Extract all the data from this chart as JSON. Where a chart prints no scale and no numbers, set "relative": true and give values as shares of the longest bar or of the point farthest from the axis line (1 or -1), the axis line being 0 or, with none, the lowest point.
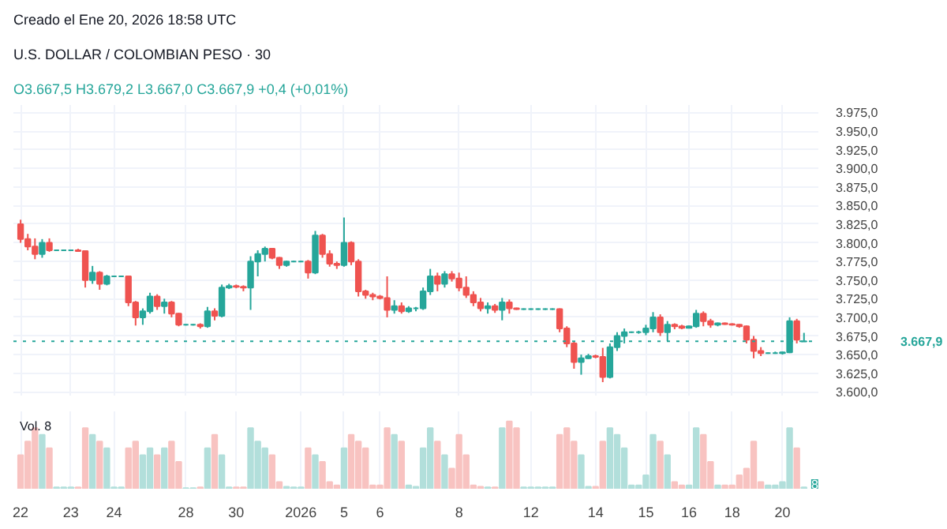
{
  "chart_data": [
    {
      "type": "candlestick",
      "title": "U.S. DOLLAR / COLOMBIAN PESO · 30",
      "subtitle": "O3.667,5 H3.679,2 L3.667,0 C3.667,9 +0,4 (+0,01%)",
      "annotations": [
        "Creado el Ene 20, 2026 18:58 UTC"
      ],
      "categories": [
        "22",
        null,
        null,
        null,
        null,
        null,
        null,
        "23",
        null,
        null,
        null,
        null,
        null,
        "24",
        null,
        null,
        null,
        null,
        null,
        null,
        null,
        null,
        null,
        "28",
        null,
        null,
        null,
        null,
        null,
        null,
        "30",
        null,
        null,
        null,
        null,
        null,
        null,
        null,
        null,
        "2026",
        null,
        null,
        null,
        null,
        null,
        "5",
        null,
        null,
        null,
        null,
        "6",
        null,
        null,
        null,
        null,
        null,
        null,
        null,
        null,
        null,
        null,
        "8",
        null,
        null,
        null,
        null,
        null,
        null,
        null,
        null,
        null,
        "12",
        null,
        null,
        null,
        null,
        null,
        null,
        null,
        null,
        "14",
        null,
        null,
        null,
        null,
        null,
        null,
        "15",
        null,
        null,
        null,
        null,
        null,
        "16",
        null,
        null,
        null,
        null,
        null,
        "18",
        null,
        null,
        null,
        null,
        null,
        null,
        "20",
        null,
        null,
        null
      ],
      "ohlc": [
        [
          3825,
          3831,
          3800,
          3805
        ],
        [
          3805,
          3812,
          3790,
          3795
        ],
        [
          3795,
          3806,
          3778,
          3785
        ],
        [
          3785,
          3805,
          3780,
          3800
        ],
        [
          3800,
          3806,
          3788,
          3790
        ],
        [
          3790,
          3791,
          3789,
          3790
        ],
        [
          3790,
          3791,
          3789,
          3790
        ],
        [
          3790,
          3791,
          3789,
          3790
        ],
        [
          3790,
          3792,
          3788,
          3789
        ],
        [
          3789,
          3790,
          3740,
          3750
        ],
        [
          3750,
          3769,
          3745,
          3760
        ],
        [
          3760,
          3762,
          3737,
          3745
        ],
        [
          3745,
          3757,
          3743,
          3755
        ],
        [
          3755,
          3756,
          3754,
          3755
        ],
        [
          3755,
          3756,
          3754,
          3755
        ],
        [
          3755,
          3756,
          3715,
          3720
        ],
        [
          3720,
          3722,
          3689,
          3700
        ],
        [
          3700,
          3712,
          3690,
          3708
        ],
        [
          3708,
          3733,
          3705,
          3728
        ],
        [
          3728,
          3731,
          3710,
          3715
        ],
        [
          3715,
          3725,
          3705,
          3720
        ],
        [
          3720,
          3722,
          3700,
          3705
        ],
        [
          3705,
          3706,
          3688,
          3690
        ],
        [
          3690,
          3691,
          3689,
          3690
        ],
        [
          3690,
          3691,
          3689,
          3690
        ],
        [
          3690,
          3692,
          3685,
          3688
        ],
        [
          3688,
          3714,
          3686,
          3708
        ],
        [
          3708,
          3712,
          3696,
          3702
        ],
        [
          3702,
          3744,
          3700,
          3740
        ],
        [
          3740,
          3745,
          3738,
          3742
        ],
        [
          3742,
          3744,
          3739,
          3741
        ],
        [
          3741,
          3743,
          3735,
          3740
        ],
        [
          3740,
          3782,
          3710,
          3775
        ],
        [
          3775,
          3790,
          3755,
          3785
        ],
        [
          3785,
          3795,
          3775,
          3792
        ],
        [
          3792,
          3793,
          3778,
          3780
        ],
        [
          3780,
          3781,
          3765,
          3770
        ],
        [
          3770,
          3776,
          3768,
          3775
        ],
        [
          3775,
          3776,
          3774,
          3775
        ],
        [
          3775,
          3776,
          3774,
          3775
        ],
        [
          3775,
          3777,
          3752,
          3760
        ],
        [
          3760,
          3816,
          3758,
          3810
        ],
        [
          3810,
          3812,
          3780,
          3785
        ],
        [
          3785,
          3790,
          3768,
          3772
        ],
        [
          3772,
          3775,
          3765,
          3770
        ],
        [
          3770,
          3834,
          3768,
          3800
        ],
        [
          3800,
          3802,
          3770,
          3775
        ],
        [
          3775,
          3778,
          3728,
          3735
        ],
        [
          3735,
          3737,
          3725,
          3730
        ],
        [
          3730,
          3733,
          3723,
          3728
        ],
        [
          3728,
          3730,
          3724,
          3726
        ],
        [
          3726,
          3755,
          3700,
          3710
        ],
        [
          3710,
          3723,
          3705,
          3715
        ],
        [
          3715,
          3720,
          3705,
          3708
        ],
        [
          3708,
          3715,
          3706,
          3712
        ],
        [
          3712,
          3714,
          3708,
          3712
        ],
        [
          3712,
          3740,
          3710,
          3735
        ],
        [
          3735,
          3765,
          3730,
          3755
        ],
        [
          3755,
          3760,
          3735,
          3745
        ],
        [
          3745,
          3762,
          3740,
          3758
        ],
        [
          3758,
          3762,
          3748,
          3752
        ],
        [
          3752,
          3760,
          3735,
          3740
        ],
        [
          3740,
          3755,
          3726,
          3730
        ],
        [
          3730,
          3735,
          3715,
          3720
        ],
        [
          3720,
          3726,
          3708,
          3712
        ],
        [
          3712,
          3720,
          3705,
          3715
        ],
        [
          3715,
          3718,
          3706,
          3710
        ],
        [
          3710,
          3726,
          3696,
          3720
        ],
        [
          3720,
          3724,
          3705,
          3712
        ],
        [
          3712,
          3713,
          3710,
          3711
        ],
        [
          3711,
          3712,
          3710,
          3711
        ],
        [
          3711,
          3712,
          3710,
          3711
        ],
        [
          3711,
          3712,
          3710,
          3711
        ],
        [
          3711,
          3712,
          3710,
          3711
        ],
        [
          3711,
          3712,
          3710,
          3711
        ],
        [
          3711,
          3712,
          3680,
          3685
        ],
        [
          3685,
          3688,
          3660,
          3665
        ],
        [
          3665,
          3668,
          3631,
          3640
        ],
        [
          3640,
          3650,
          3623,
          3645
        ],
        [
          3645,
          3651,
          3644,
          3648
        ],
        [
          3648,
          3650,
          3645,
          3647
        ],
        [
          3647,
          3659,
          3613,
          3620
        ],
        [
          3620,
          3665,
          3618,
          3660
        ],
        [
          3660,
          3680,
          3655,
          3675
        ],
        [
          3675,
          3685,
          3665,
          3680
        ],
        [
          3680,
          3681,
          3679,
          3680
        ],
        [
          3680,
          3682,
          3678,
          3680
        ],
        [
          3680,
          3690,
          3676,
          3685
        ],
        [
          3685,
          3707,
          3680,
          3700
        ],
        [
          3700,
          3704,
          3675,
          3680
        ],
        [
          3680,
          3695,
          3668,
          3690
        ],
        [
          3690,
          3692,
          3684,
          3688
        ],
        [
          3688,
          3690,
          3684,
          3686
        ],
        [
          3686,
          3689,
          3685,
          3688
        ],
        [
          3688,
          3710,
          3686,
          3705
        ],
        [
          3705,
          3708,
          3688,
          3695
        ],
        [
          3695,
          3698,
          3686,
          3690
        ],
        [
          3690,
          3693,
          3688,
          3692
        ],
        [
          3692,
          3693,
          3690,
          3691
        ],
        [
          3691,
          3692,
          3689,
          3690
        ],
        [
          3690,
          3691,
          3686,
          3688
        ],
        [
          3688,
          3689,
          3665,
          3670
        ],
        [
          3670,
          3675,
          3645,
          3655
        ],
        [
          3655,
          3660,
          3648,
          3652
        ],
        [
          3652,
          3653,
          3651,
          3652
        ],
        [
          3652,
          3654,
          3651,
          3652
        ],
        [
          3652,
          3654,
          3650,
          3653
        ],
        [
          3653,
          3700,
          3652,
          3695
        ],
        [
          3695,
          3698,
          3665,
          3670
        ],
        [
          3667.5,
          3679.2,
          3667.0,
          3667.9
        ]
      ],
      "colors": [
        "#ef5350",
        "#ef5350",
        "#ef5350",
        "#26a69a",
        "#ef5350",
        "#26a69a",
        "#26a69a",
        "#26a69a",
        "#ef5350",
        "#ef5350",
        "#26a69a",
        "#ef5350",
        "#26a69a",
        "#26a69a",
        "#26a69a",
        "#ef5350",
        "#ef5350",
        "#26a69a",
        "#26a69a",
        "#ef5350",
        "#26a69a",
        "#ef5350",
        "#ef5350",
        "#26a69a",
        "#26a69a",
        "#ef5350",
        "#26a69a",
        "#ef5350",
        "#26a69a",
        "#26a69a",
        "#ef5350",
        "#ef5350",
        "#26a69a",
        "#26a69a",
        "#26a69a",
        "#ef5350",
        "#ef5350",
        "#26a69a",
        "#26a69a",
        "#26a69a",
        "#ef5350",
        "#26a69a",
        "#ef5350",
        "#ef5350",
        "#ef5350",
        "#26a69a",
        "#ef5350",
        "#ef5350",
        "#ef5350",
        "#ef5350",
        "#ef5350",
        "#ef5350",
        "#26a69a",
        "#ef5350",
        "#26a69a",
        "#26a69a",
        "#26a69a",
        "#26a69a",
        "#ef5350",
        "#26a69a",
        "#ef5350",
        "#ef5350",
        "#ef5350",
        "#ef5350",
        "#ef5350",
        "#26a69a",
        "#ef5350",
        "#26a69a",
        "#ef5350",
        "#ef5350",
        "#26a69a",
        "#26a69a",
        "#26a69a",
        "#26a69a",
        "#26a69a",
        "#ef5350",
        "#ef5350",
        "#ef5350",
        "#26a69a",
        "#26a69a",
        "#ef5350",
        "#ef5350",
        "#26a69a",
        "#26a69a",
        "#26a69a",
        "#26a69a",
        "#26a69a",
        "#26a69a",
        "#26a69a",
        "#ef5350",
        "#26a69a",
        "#ef5350",
        "#ef5350",
        "#26a69a",
        "#26a69a",
        "#ef5350",
        "#ef5350",
        "#26a69a",
        "#ef5350",
        "#ef5350",
        "#ef5350",
        "#ef5350",
        "#ef5350",
        "#ef5350",
        "#26a69a",
        "#26a69a",
        "#26a69a",
        "#26a69a",
        "#ef5350",
        "#26a69a"
      ],
      "ylim": [
        3595,
        3985
      ],
      "yticks": [
        {
          "value": 3600,
          "label": "3.600,0"
        },
        {
          "value": 3625,
          "label": "3.625,0"
        },
        {
          "value": 3650,
          "label": "3.650,0"
        },
        {
          "value": 3675,
          "label": "3.675,0"
        },
        {
          "value": 3700,
          "label": "3.700,0"
        },
        {
          "value": 3725,
          "label": "3.725,0"
        },
        {
          "value": 3750,
          "label": "3.750,0"
        },
        {
          "value": 3775,
          "label": "3.775,0"
        },
        {
          "value": 3800,
          "label": "3.800,0"
        },
        {
          "value": 3825,
          "label": "3.825,0"
        },
        {
          "value": 3850,
          "label": "3.850,0"
        },
        {
          "value": 3875,
          "label": "3.875,0"
        },
        {
          "value": 3900,
          "label": "3.900,0"
        },
        {
          "value": 3925,
          "label": "3.925,0"
        },
        {
          "value": 3950,
          "label": "3.950,0"
        },
        {
          "value": 3975,
          "label": "3.975,0"
        }
      ],
      "ref_lines": [
        {
          "axis": "y",
          "value": 3667.9,
          "label": "3.667,9",
          "color": "#26a69a",
          "line_style": "dotted"
        }
      ],
      "grid": true,
      "tick_labels": "y"
    },
    {
      "type": "bar",
      "relative": true,
      "annotations": [
        "Vol. 8",
        "8"
      ],
      "categories": [
        "22",
        null,
        null,
        null,
        null,
        null,
        null,
        "23",
        null,
        null,
        null,
        null,
        null,
        "24",
        null,
        null,
        null,
        null,
        null,
        null,
        null,
        null,
        null,
        "28",
        null,
        null,
        null,
        null,
        null,
        null,
        "30",
        null,
        null,
        null,
        null,
        null,
        null,
        null,
        null,
        "2026",
        null,
        null,
        null,
        null,
        null,
        "5",
        null,
        null,
        null,
        null,
        "6",
        null,
        null,
        null,
        null,
        null,
        null,
        null,
        null,
        null,
        null,
        "8",
        null,
        null,
        null,
        null,
        null,
        null,
        null,
        null,
        null,
        "12",
        null,
        null,
        null,
        null,
        null,
        null,
        null,
        null,
        "14",
        null,
        null,
        null,
        null,
        null,
        null,
        "15",
        null,
        null,
        null,
        null,
        null,
        "16",
        null,
        null,
        null,
        null,
        null,
        "18",
        null,
        null,
        null,
        null,
        null,
        null,
        "20",
        null,
        null,
        null
      ],
      "values": [
        0.5,
        0.7,
        0.9,
        0.8,
        0.6,
        0.02,
        0.02,
        0.02,
        0.02,
        0.9,
        0.8,
        0.7,
        0.6,
        0.02,
        0.02,
        0.6,
        0.7,
        0.5,
        0.6,
        0.5,
        0.6,
        0.7,
        0.4,
        0.01,
        0.01,
        0.02,
        0.6,
        0.8,
        0.5,
        0.02,
        0.02,
        0.02,
        0.9,
        0.7,
        0.6,
        0.5,
        0.1,
        0.03,
        0.02,
        0.02,
        0.6,
        0.5,
        0.4,
        0.1,
        0.05,
        0.6,
        0.8,
        0.7,
        0.6,
        0.05,
        0.05,
        0.9,
        0.8,
        0.7,
        0.05,
        0.03,
        0.6,
        0.9,
        0.7,
        0.5,
        0.3,
        0.8,
        0.5,
        0.05,
        0.03,
        0.02,
        0.02,
        0.9,
        1.0,
        0.9,
        0.02,
        0.02,
        0.02,
        0.02,
        0.02,
        0.8,
        0.9,
        0.7,
        0.5,
        0.03,
        0.03,
        0.7,
        0.9,
        0.8,
        0.6,
        0.05,
        0.05,
        0.2,
        0.8,
        0.7,
        0.5,
        0.1,
        0.05,
        0.05,
        0.9,
        0.8,
        0.4,
        0.05,
        0.05,
        0.05,
        0.2,
        0.3,
        0.7,
        0.1,
        0.05,
        0.05,
        0.1,
        0.9,
        0.6,
        0.02
      ],
      "colors": [
        "#f8c3c1",
        "#f8c3c1",
        "#f8c3c1",
        "#b2dfdb",
        "#f8c3c1",
        "#b2dfdb",
        "#b2dfdb",
        "#b2dfdb",
        "#f8c3c1",
        "#f8c3c1",
        "#b2dfdb",
        "#f8c3c1",
        "#b2dfdb",
        "#b2dfdb",
        "#b2dfdb",
        "#f8c3c1",
        "#f8c3c1",
        "#b2dfdb",
        "#b2dfdb",
        "#f8c3c1",
        "#b2dfdb",
        "#f8c3c1",
        "#f8c3c1",
        "#b2dfdb",
        "#b2dfdb",
        "#f8c3c1",
        "#b2dfdb",
        "#f8c3c1",
        "#b2dfdb",
        "#b2dfdb",
        "#f8c3c1",
        "#f8c3c1",
        "#b2dfdb",
        "#b2dfdb",
        "#b2dfdb",
        "#f8c3c1",
        "#f8c3c1",
        "#b2dfdb",
        "#b2dfdb",
        "#b2dfdb",
        "#f8c3c1",
        "#b2dfdb",
        "#f8c3c1",
        "#f8c3c1",
        "#f8c3c1",
        "#b2dfdb",
        "#f8c3c1",
        "#f8c3c1",
        "#f8c3c1",
        "#f8c3c1",
        "#f8c3c1",
        "#f8c3c1",
        "#b2dfdb",
        "#f8c3c1",
        "#b2dfdb",
        "#b2dfdb",
        "#b2dfdb",
        "#b2dfdb",
        "#f8c3c1",
        "#b2dfdb",
        "#f8c3c1",
        "#f8c3c1",
        "#f8c3c1",
        "#f8c3c1",
        "#f8c3c1",
        "#b2dfdb",
        "#f8c3c1",
        "#b2dfdb",
        "#f8c3c1",
        "#f8c3c1",
        "#b2dfdb",
        "#b2dfdb",
        "#b2dfdb",
        "#b2dfdb",
        "#b2dfdb",
        "#f8c3c1",
        "#f8c3c1",
        "#f8c3c1",
        "#b2dfdb",
        "#b2dfdb",
        "#f8c3c1",
        "#f8c3c1",
        "#b2dfdb",
        "#b2dfdb",
        "#b2dfdb",
        "#b2dfdb",
        "#b2dfdb",
        "#b2dfdb",
        "#b2dfdb",
        "#f8c3c1",
        "#b2dfdb",
        "#f8c3c1",
        "#f8c3c1",
        "#b2dfdb",
        "#b2dfdb",
        "#f8c3c1",
        "#f8c3c1",
        "#b2dfdb",
        "#f8c3c1",
        "#f8c3c1",
        "#f8c3c1",
        "#f8c3c1",
        "#f8c3c1",
        "#f8c3c1",
        "#b2dfdb",
        "#b2dfdb",
        "#b2dfdb",
        "#b2dfdb",
        "#f8c3c1",
        "#b2dfdb"
      ],
      "grid": "x",
      "tick_labels": "x"
    }
  ]
}
